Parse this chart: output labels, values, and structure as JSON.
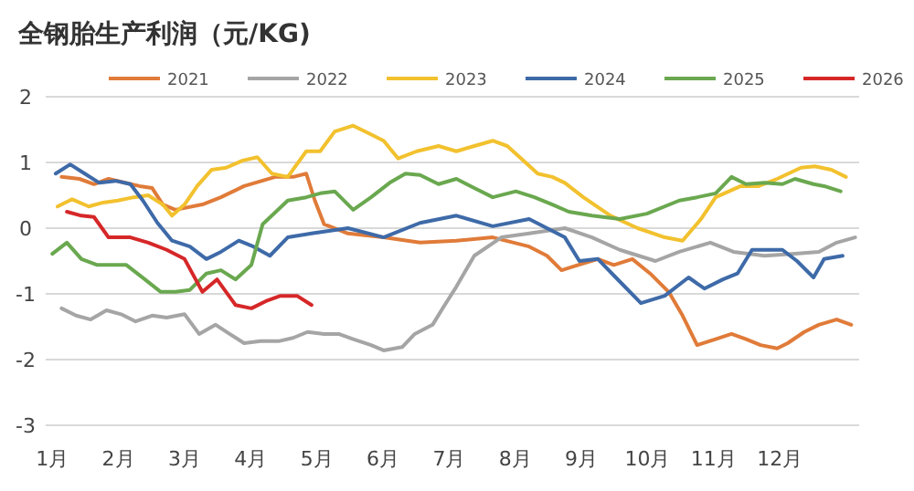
{
  "chart_data": {
    "type": "line",
    "title": "全钢胎生产利润（元/KG)",
    "legend": "top",
    "grid": "y",
    "marker": "none",
    "xlim": [
      0.9,
      13.2
    ],
    "xticks": [
      {
        "value": 1,
        "label": "1月"
      },
      {
        "value": 2,
        "label": "2月"
      },
      {
        "value": 3,
        "label": "3月"
      },
      {
        "value": 4,
        "label": "4月"
      },
      {
        "value": 5,
        "label": "5月"
      },
      {
        "value": 6,
        "label": "6月"
      },
      {
        "value": 7,
        "label": "7月"
      },
      {
        "value": 8,
        "label": "8月"
      },
      {
        "value": 9,
        "label": "9月"
      },
      {
        "value": 10,
        "label": "10月"
      },
      {
        "value": 11,
        "label": "11月"
      },
      {
        "value": 12,
        "label": "12月"
      }
    ],
    "ylim": [
      -3,
      2
    ],
    "yticks": [
      -3,
      -2,
      -1,
      0,
      1,
      2
    ],
    "series": [
      {
        "name": "2021",
        "color": "#e07b39",
        "x": [
          1.14,
          1.41,
          1.63,
          1.85,
          2.1,
          2.32,
          2.51,
          2.67,
          2.86,
          3.27,
          3.55,
          3.9,
          4.37,
          4.64,
          4.84,
          4.97,
          5.11,
          5.47,
          6.01,
          6.56,
          7.11,
          7.66,
          8.21,
          8.48,
          8.7,
          8.95,
          9.25,
          9.49,
          9.77,
          10.04,
          10.32,
          10.53,
          10.75,
          11.03,
          11.27,
          11.49,
          11.71,
          11.96,
          12.12,
          12.37,
          12.59,
          12.86,
          13.08
        ],
        "values": [
          0.78,
          0.75,
          0.67,
          0.75,
          0.69,
          0.64,
          0.61,
          0.36,
          0.28,
          0.36,
          0.47,
          0.64,
          0.78,
          0.78,
          0.83,
          0.42,
          0.06,
          -0.08,
          -0.14,
          -0.22,
          -0.19,
          -0.14,
          -0.28,
          -0.42,
          -0.64,
          -0.56,
          -0.47,
          -0.56,
          -0.47,
          -0.69,
          -0.97,
          -1.33,
          -1.78,
          -1.69,
          -1.61,
          -1.69,
          -1.78,
          -1.83,
          -1.75,
          -1.58,
          -1.47,
          -1.39,
          -1.47
        ]
      },
      {
        "name": "2022",
        "color": "#a5a5a5",
        "x": [
          1.14,
          1.36,
          1.58,
          1.82,
          2.04,
          2.26,
          2.51,
          2.73,
          3.0,
          3.22,
          3.47,
          3.68,
          3.9,
          4.15,
          4.42,
          4.64,
          4.86,
          5.11,
          5.33,
          5.55,
          5.82,
          6.01,
          6.29,
          6.48,
          6.75,
          6.92,
          7.11,
          7.38,
          7.79,
          8.21,
          8.75,
          9.16,
          9.58,
          10.12,
          10.48,
          10.95,
          11.3,
          11.77,
          12.23,
          12.59,
          12.86,
          13.14
        ],
        "values": [
          -1.22,
          -1.33,
          -1.39,
          -1.25,
          -1.31,
          -1.42,
          -1.33,
          -1.36,
          -1.31,
          -1.61,
          -1.47,
          -1.61,
          -1.75,
          -1.72,
          -1.72,
          -1.67,
          -1.58,
          -1.61,
          -1.61,
          -1.69,
          -1.78,
          -1.86,
          -1.81,
          -1.61,
          -1.47,
          -1.19,
          -0.89,
          -0.42,
          -0.14,
          -0.08,
          0.0,
          -0.14,
          -0.33,
          -0.5,
          -0.36,
          -0.22,
          -0.36,
          -0.42,
          -0.39,
          -0.36,
          -0.22,
          -0.14
        ]
      },
      {
        "name": "2023",
        "color": "#f2c12e",
        "x": [
          1.08,
          1.3,
          1.55,
          1.77,
          1.99,
          2.23,
          2.45,
          2.67,
          2.81,
          3.0,
          3.19,
          3.41,
          3.63,
          3.88,
          4.1,
          4.32,
          4.56,
          4.84,
          5.05,
          5.27,
          5.55,
          5.79,
          6.01,
          6.23,
          6.51,
          6.84,
          7.11,
          7.38,
          7.66,
          7.88,
          8.12,
          8.34,
          8.56,
          8.75,
          9.03,
          9.44,
          9.85,
          10.26,
          10.53,
          10.81,
          11.03,
          11.41,
          11.68,
          11.96,
          12.32,
          12.53,
          12.78,
          13.0
        ],
        "values": [
          0.33,
          0.44,
          0.33,
          0.39,
          0.42,
          0.47,
          0.5,
          0.36,
          0.19,
          0.36,
          0.64,
          0.89,
          0.92,
          1.03,
          1.08,
          0.83,
          0.78,
          1.17,
          1.17,
          1.47,
          1.56,
          1.44,
          1.33,
          1.06,
          1.17,
          1.25,
          1.17,
          1.25,
          1.33,
          1.25,
          1.03,
          0.83,
          0.78,
          0.69,
          0.47,
          0.19,
          0.0,
          -0.14,
          -0.19,
          0.14,
          0.47,
          0.64,
          0.64,
          0.75,
          0.92,
          0.94,
          0.89,
          0.78
        ]
      },
      {
        "name": "2024",
        "color": "#3e6aa8",
        "x": [
          1.05,
          1.27,
          1.49,
          1.71,
          1.96,
          2.18,
          2.37,
          2.59,
          2.81,
          3.08,
          3.33,
          3.55,
          3.82,
          4.04,
          4.29,
          4.56,
          4.92,
          5.47,
          6.01,
          6.56,
          7.11,
          7.66,
          8.21,
          8.75,
          8.97,
          9.25,
          9.52,
          9.9,
          10.26,
          10.62,
          10.86,
          11.14,
          11.36,
          11.58,
          11.82,
          12.04,
          12.26,
          12.51,
          12.67,
          12.95
        ],
        "values": [
          0.83,
          0.97,
          0.83,
          0.69,
          0.72,
          0.67,
          0.42,
          0.08,
          -0.19,
          -0.28,
          -0.47,
          -0.36,
          -0.19,
          -0.28,
          -0.42,
          -0.14,
          -0.08,
          0.0,
          -0.14,
          0.08,
          0.19,
          0.03,
          0.14,
          -0.14,
          -0.5,
          -0.47,
          -0.75,
          -1.14,
          -1.03,
          -0.75,
          -0.92,
          -0.78,
          -0.69,
          -0.33,
          -0.33,
          -0.33,
          -0.5,
          -0.75,
          -0.47,
          -0.42
        ]
      },
      {
        "name": "2025",
        "color": "#6aa84f",
        "x": [
          1.0,
          1.22,
          1.44,
          1.68,
          1.9,
          2.12,
          2.4,
          2.64,
          2.86,
          3.08,
          3.33,
          3.55,
          3.77,
          4.01,
          4.18,
          4.56,
          4.84,
          5.05,
          5.27,
          5.55,
          5.82,
          6.1,
          6.34,
          6.56,
          6.84,
          7.11,
          7.38,
          7.66,
          8.01,
          8.29,
          8.56,
          8.81,
          9.16,
          9.58,
          9.99,
          10.48,
          10.75,
          11.03,
          11.27,
          11.49,
          11.77,
          12.04,
          12.23,
          12.51,
          12.67,
          12.92
        ],
        "values": [
          -0.39,
          -0.22,
          -0.47,
          -0.56,
          -0.56,
          -0.56,
          -0.78,
          -0.97,
          -0.97,
          -0.94,
          -0.69,
          -0.64,
          -0.78,
          -0.56,
          0.06,
          0.42,
          0.47,
          0.53,
          0.56,
          0.28,
          0.47,
          0.69,
          0.83,
          0.81,
          0.67,
          0.75,
          0.61,
          0.47,
          0.56,
          0.47,
          0.36,
          0.25,
          0.19,
          0.14,
          0.22,
          0.42,
          0.47,
          0.53,
          0.78,
          0.67,
          0.69,
          0.67,
          0.75,
          0.67,
          0.64,
          0.56
        ]
      },
      {
        "name": "2026",
        "color": "#d62728",
        "x": [
          1.22,
          1.44,
          1.63,
          1.85,
          2.18,
          2.45,
          2.73,
          3.0,
          3.27,
          3.49,
          3.77,
          4.01,
          4.23,
          4.45,
          4.7,
          4.92
        ],
        "values": [
          0.25,
          0.19,
          0.17,
          -0.14,
          -0.14,
          -0.22,
          -0.33,
          -0.47,
          -0.97,
          -0.78,
          -1.17,
          -1.22,
          -1.11,
          -1.03,
          -1.03,
          -1.17
        ]
      }
    ]
  }
}
